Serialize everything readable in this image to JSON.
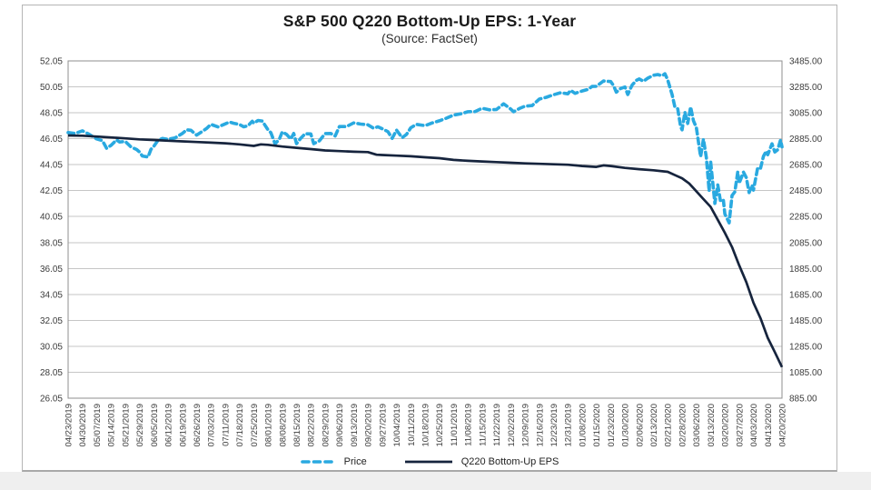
{
  "chart": {
    "title": "S&P 500 Q220 Bottom-Up EPS: 1-Year",
    "subtitle": "(Source: FactSet)"
  },
  "chart_data": {
    "type": "line",
    "title": "S&P 500 Q220 Bottom-Up EPS: 1-Year",
    "subtitle": "(Source: FactSet)",
    "grid": "horizontal",
    "legend_position": "bottom",
    "categories": [
      "04/23/2019",
      "04/30/2019",
      "05/07/2019",
      "05/14/2019",
      "05/21/2019",
      "05/29/2019",
      "06/05/2019",
      "06/12/2019",
      "06/19/2019",
      "06/26/2019",
      "07/03/2019",
      "07/11/2019",
      "07/18/2019",
      "07/25/2019",
      "08/01/2019",
      "08/08/2019",
      "08/15/2019",
      "08/22/2019",
      "08/29/2019",
      "09/06/2019",
      "09/13/2019",
      "09/20/2019",
      "09/27/2019",
      "10/04/2019",
      "10/11/2019",
      "10/18/2019",
      "10/25/2019",
      "11/01/2019",
      "11/08/2019",
      "11/15/2019",
      "11/22/2019",
      "12/02/2019",
      "12/09/2019",
      "12/16/2019",
      "12/23/2019",
      "12/31/2019",
      "01/08/2020",
      "01/15/2020",
      "01/23/2020",
      "01/30/2020",
      "02/06/2020",
      "02/13/2020",
      "02/21/2020",
      "02/28/2020",
      "03/06/2020",
      "03/13/2020",
      "03/20/2020",
      "03/27/2020",
      "04/03/2020",
      "04/13/2020",
      "04/20/2020"
    ],
    "y_axis_left": {
      "ticks": [
        "52.05",
        "50.05",
        "48.05",
        "46.05",
        "44.05",
        "42.05",
        "40.05",
        "38.05",
        "36.05",
        "34.05",
        "32.05",
        "30.05",
        "28.05",
        "26.05"
      ],
      "min": 26.05,
      "max": 52.05
    },
    "y_axis_right": {
      "ticks": [
        "3485.00",
        "3285.00",
        "3085.00",
        "2885.00",
        "2685.00",
        "2485.00",
        "2285.00",
        "2085.00",
        "1885.00",
        "1685.00",
        "1485.00",
        "1285.00",
        "1085.00",
        "885.00"
      ],
      "min": 885,
      "max": 3485
    },
    "series": [
      {
        "name": "Price",
        "axis": "right",
        "style": "dashed",
        "color": "#29a9e0",
        "points": [
          [
            0,
            2933
          ],
          [
            0.5,
            2926
          ],
          [
            1,
            2946
          ],
          [
            1.4,
            2924
          ],
          [
            2,
            2884
          ],
          [
            2.4,
            2871
          ],
          [
            2.7,
            2811
          ],
          [
            3,
            2834
          ],
          [
            3.4,
            2876
          ],
          [
            3.6,
            2860
          ],
          [
            4,
            2864
          ],
          [
            4.4,
            2822
          ],
          [
            4.8,
            2802
          ],
          [
            5,
            2783
          ],
          [
            5.2,
            2752
          ],
          [
            5.6,
            2744
          ],
          [
            5.8,
            2803
          ],
          [
            6,
            2826
          ],
          [
            6.3,
            2873
          ],
          [
            6.6,
            2887
          ],
          [
            7,
            2880
          ],
          [
            7.5,
            2892
          ],
          [
            8,
            2926
          ],
          [
            8.3,
            2954
          ],
          [
            8.6,
            2950
          ],
          [
            9,
            2913
          ],
          [
            9.4,
            2942
          ],
          [
            9.7,
            2964
          ],
          [
            10,
            2996
          ],
          [
            10.5,
            2976
          ],
          [
            11,
            2999
          ],
          [
            11.3,
            3014
          ],
          [
            11.6,
            3004
          ],
          [
            12,
            2995
          ],
          [
            12.3,
            2977
          ],
          [
            12.6,
            2985
          ],
          [
            12.9,
            3020
          ],
          [
            13,
            3004
          ],
          [
            13.3,
            3026
          ],
          [
            13.6,
            3021
          ],
          [
            14,
            2953
          ],
          [
            14.2,
            2932
          ],
          [
            14.5,
            2845
          ],
          [
            14.8,
            2884
          ],
          [
            15,
            2938
          ],
          [
            15.3,
            2919
          ],
          [
            15.6,
            2883
          ],
          [
            15.8,
            2926
          ],
          [
            16,
            2847
          ],
          [
            16.3,
            2889
          ],
          [
            16.6,
            2924
          ],
          [
            17,
            2922
          ],
          [
            17.2,
            2847
          ],
          [
            17.6,
            2869
          ],
          [
            18,
            2925
          ],
          [
            18.4,
            2926
          ],
          [
            18.7,
            2906
          ],
          [
            19,
            2979
          ],
          [
            19.5,
            2979
          ],
          [
            20,
            3007
          ],
          [
            20.5,
            2998
          ],
          [
            21,
            2992
          ],
          [
            21.4,
            2966
          ],
          [
            21.7,
            2977
          ],
          [
            22,
            2962
          ],
          [
            22.4,
            2940
          ],
          [
            22.7,
            2888
          ],
          [
            23,
            2952
          ],
          [
            23.4,
            2893
          ],
          [
            23.7,
            2919
          ],
          [
            24,
            2970
          ],
          [
            24.4,
            2996
          ],
          [
            25,
            2986
          ],
          [
            25.5,
            3007
          ],
          [
            26,
            3023
          ],
          [
            26.4,
            3039
          ],
          [
            27,
            3067
          ],
          [
            27.5,
            3077
          ],
          [
            28,
            3093
          ],
          [
            28.5,
            3094
          ],
          [
            29,
            3120
          ],
          [
            29.5,
            3108
          ],
          [
            30,
            3110
          ],
          [
            30.5,
            3154
          ],
          [
            31,
            3114
          ],
          [
            31.2,
            3093
          ],
          [
            31.6,
            3118
          ],
          [
            32,
            3136
          ],
          [
            32.5,
            3141
          ],
          [
            33,
            3191
          ],
          [
            33.5,
            3205
          ],
          [
            34,
            3224
          ],
          [
            34.5,
            3240
          ],
          [
            35,
            3231
          ],
          [
            35.2,
            3258
          ],
          [
            35.5,
            3235
          ],
          [
            36,
            3253
          ],
          [
            36.4,
            3265
          ],
          [
            36.7,
            3288
          ],
          [
            37,
            3289
          ],
          [
            37.5,
            3330
          ],
          [
            38,
            3326
          ],
          [
            38.2,
            3295
          ],
          [
            38.4,
            3244
          ],
          [
            38.7,
            3273
          ],
          [
            39,
            3284
          ],
          [
            39.2,
            3226
          ],
          [
            39.5,
            3298
          ],
          [
            39.8,
            3335
          ],
          [
            40,
            3346
          ],
          [
            40.3,
            3328
          ],
          [
            40.6,
            3352
          ],
          [
            41,
            3374
          ],
          [
            41.3,
            3380
          ],
          [
            41.6,
            3370
          ],
          [
            41.8,
            3386
          ],
          [
            42,
            3338
          ],
          [
            42.3,
            3226
          ],
          [
            42.5,
            3128
          ],
          [
            42.7,
            3116
          ],
          [
            42.9,
            2979
          ],
          [
            43,
            2954
          ],
          [
            43.2,
            3090
          ],
          [
            43.4,
            3003
          ],
          [
            43.6,
            3130
          ],
          [
            43.8,
            3024
          ],
          [
            44,
            2972
          ],
          [
            44.3,
            2746
          ],
          [
            44.5,
            2882
          ],
          [
            44.7,
            2741
          ],
          [
            44.9,
            2481
          ],
          [
            45,
            2711
          ],
          [
            45.3,
            2386
          ],
          [
            45.5,
            2529
          ],
          [
            45.7,
            2398
          ],
          [
            45.9,
            2409
          ],
          [
            46,
            2305
          ],
          [
            46.3,
            2237
          ],
          [
            46.5,
            2447
          ],
          [
            46.7,
            2476
          ],
          [
            46.9,
            2630
          ],
          [
            47,
            2541
          ],
          [
            47.3,
            2627
          ],
          [
            47.5,
            2585
          ],
          [
            47.7,
            2470
          ],
          [
            47.9,
            2527
          ],
          [
            48,
            2489
          ],
          [
            48.3,
            2664
          ],
          [
            48.5,
            2659
          ],
          [
            48.7,
            2750
          ],
          [
            48.9,
            2790
          ],
          [
            49,
            2762
          ],
          [
            49.3,
            2846
          ],
          [
            49.5,
            2783
          ],
          [
            49.7,
            2800
          ],
          [
            49.9,
            2875
          ],
          [
            50,
            2823
          ]
        ]
      },
      {
        "name": "Q220 Bottom-Up EPS",
        "axis": "left",
        "style": "solid",
        "color": "#16243d",
        "points": [
          [
            0,
            46.3
          ],
          [
            1,
            46.28
          ],
          [
            2,
            46.22
          ],
          [
            3,
            46.15
          ],
          [
            4,
            46.08
          ],
          [
            5,
            46.0
          ],
          [
            6,
            45.95
          ],
          [
            7,
            45.9
          ],
          [
            8,
            45.85
          ],
          [
            9,
            45.8
          ],
          [
            10,
            45.75
          ],
          [
            11,
            45.7
          ],
          [
            12,
            45.62
          ],
          [
            13,
            45.5
          ],
          [
            13.5,
            45.62
          ],
          [
            14,
            45.58
          ],
          [
            15,
            45.45
          ],
          [
            16,
            45.35
          ],
          [
            17,
            45.25
          ],
          [
            18,
            45.15
          ],
          [
            19,
            45.1
          ],
          [
            20,
            45.05
          ],
          [
            21,
            45.02
          ],
          [
            21.6,
            44.82
          ],
          [
            22,
            44.8
          ],
          [
            23,
            44.75
          ],
          [
            24,
            44.7
          ],
          [
            25,
            44.62
          ],
          [
            26,
            44.55
          ],
          [
            27,
            44.42
          ],
          [
            28,
            44.35
          ],
          [
            29,
            44.3
          ],
          [
            30,
            44.25
          ],
          [
            31,
            44.2
          ],
          [
            32,
            44.15
          ],
          [
            33,
            44.12
          ],
          [
            34,
            44.08
          ],
          [
            35,
            44.05
          ],
          [
            36,
            43.95
          ],
          [
            37,
            43.88
          ],
          [
            37.5,
            44.0
          ],
          [
            38,
            43.95
          ],
          [
            39,
            43.8
          ],
          [
            40,
            43.7
          ],
          [
            41,
            43.62
          ],
          [
            42,
            43.5
          ],
          [
            42.6,
            43.2
          ],
          [
            43,
            43.0
          ],
          [
            43.5,
            42.6
          ],
          [
            44,
            42.0
          ],
          [
            44.5,
            41.4
          ],
          [
            45,
            40.8
          ],
          [
            45.5,
            39.8
          ],
          [
            46,
            38.8
          ],
          [
            46.5,
            37.7
          ],
          [
            47,
            36.3
          ],
          [
            47.5,
            35.0
          ],
          [
            48,
            33.4
          ],
          [
            48.5,
            32.2
          ],
          [
            49,
            30.7
          ],
          [
            49.5,
            29.6
          ],
          [
            50,
            28.45
          ]
        ]
      }
    ],
    "colors": {
      "grid": "#c6c6c6",
      "frame": "#8f8f8f"
    }
  }
}
